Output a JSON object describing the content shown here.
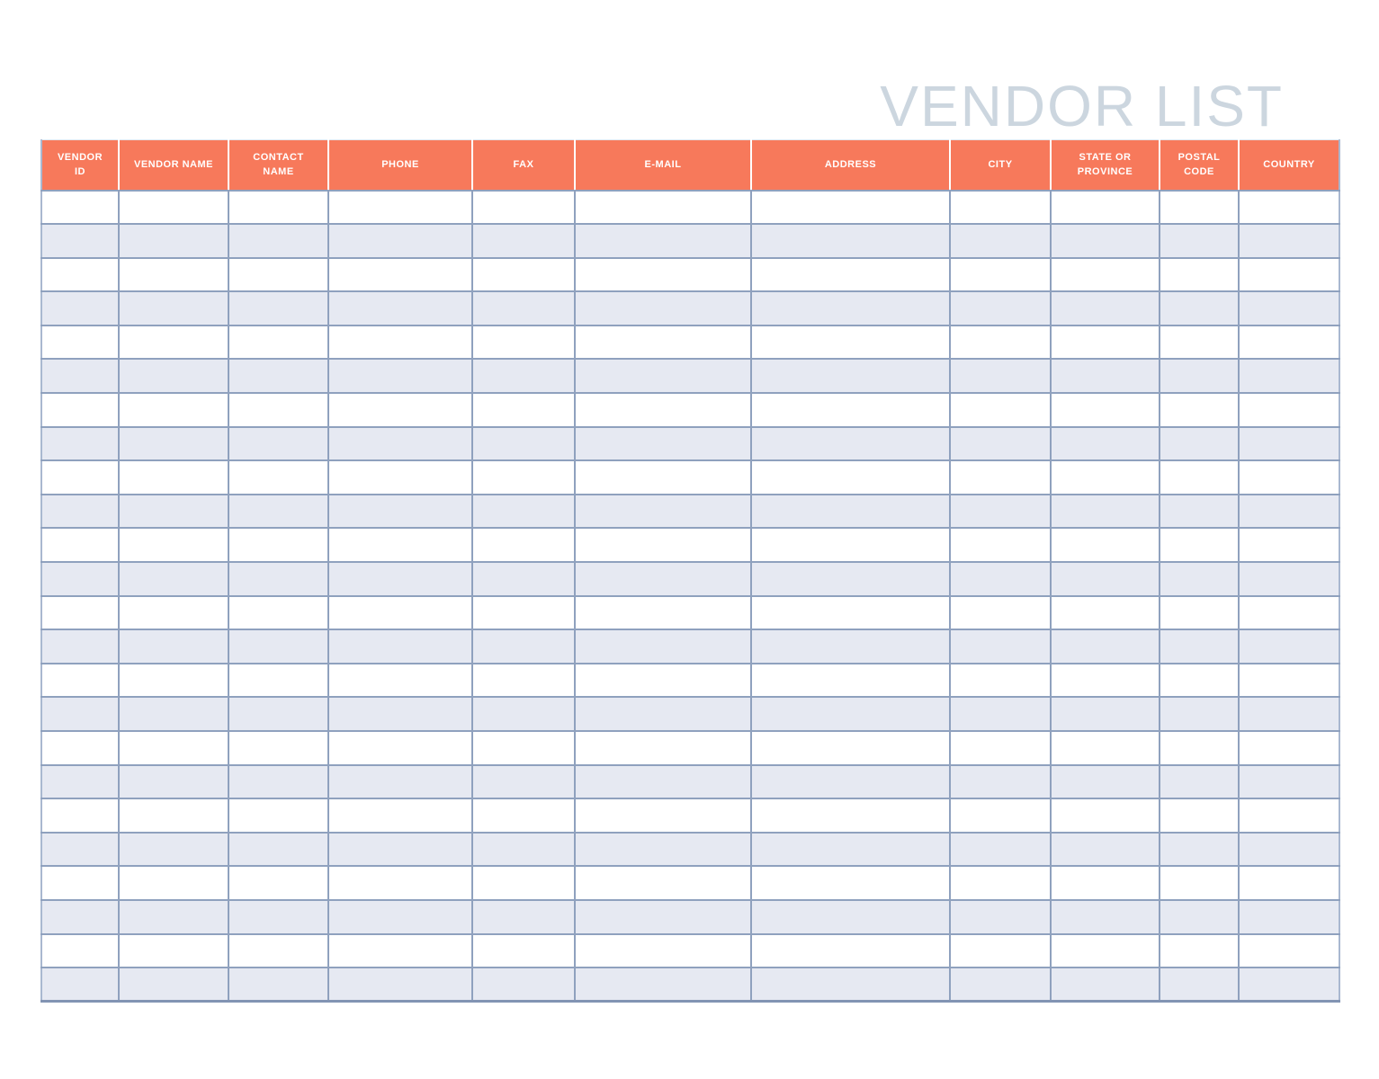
{
  "page": {
    "title": "VENDOR LIST"
  },
  "table": {
    "columns": [
      {
        "id": "vendor-id",
        "label": "VENDOR\nID"
      },
      {
        "id": "vendor-name",
        "label": "VENDOR NAME"
      },
      {
        "id": "contact-name",
        "label": "CONTACT\nNAME"
      },
      {
        "id": "phone",
        "label": "PHONE"
      },
      {
        "id": "fax",
        "label": "FAX"
      },
      {
        "id": "e-mail",
        "label": "E-MAIL"
      },
      {
        "id": "address",
        "label": "ADDRESS"
      },
      {
        "id": "city",
        "label": "CITY"
      },
      {
        "id": "state-or-province",
        "label": "STATE OR\nPROVINCE"
      },
      {
        "id": "postal-code",
        "label": "POSTAL\nCODE"
      },
      {
        "id": "country",
        "label": "COUNTRY"
      }
    ],
    "row_count": 24,
    "cell_value": ""
  },
  "colors": {
    "header_bg": "#F7795B",
    "header_text": "#FFFFFF",
    "row_bg": "#FFFFFF",
    "row_alt_bg": "#E6E9F2",
    "grid_border": "#8FA1BE",
    "outer_border": "#A9B8D0",
    "bottom_border": "#8294B3",
    "title_color": "#CCD6DF"
  }
}
